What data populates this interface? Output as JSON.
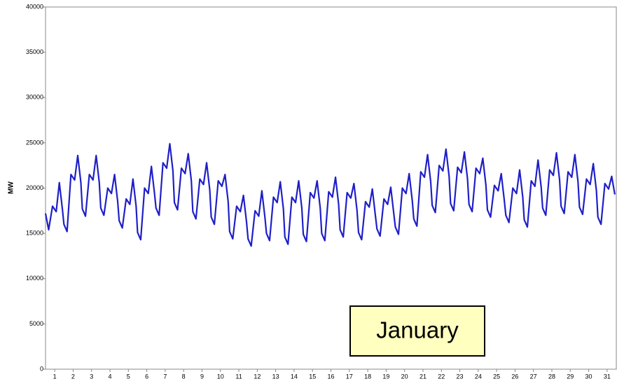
{
  "chart_data": {
    "type": "line",
    "y_label": "MW",
    "annotation": "January",
    "color": "#1f1fc8",
    "xlim": [
      1,
      32
    ],
    "ylim": [
      0,
      40000
    ],
    "yticks": [
      0,
      5000,
      10000,
      15000,
      20000,
      25000,
      30000,
      35000,
      40000
    ],
    "xticks": [
      {
        "value": 1.5,
        "label": "1"
      },
      {
        "value": 2.5,
        "label": "2"
      },
      {
        "value": 3.5,
        "label": "3"
      },
      {
        "value": 4.5,
        "label": "4"
      },
      {
        "value": 5.5,
        "label": "5"
      },
      {
        "value": 6.5,
        "label": "6"
      },
      {
        "value": 7.5,
        "label": "7"
      },
      {
        "value": 8.5,
        "label": "8"
      },
      {
        "value": 9.5,
        "label": "9"
      },
      {
        "value": 10.5,
        "label": "10"
      },
      {
        "value": 11.5,
        "label": "11"
      },
      {
        "value": 12.5,
        "label": "12"
      },
      {
        "value": 13.5,
        "label": "13"
      },
      {
        "value": 14.5,
        "label": "14"
      },
      {
        "value": 15.5,
        "label": "15"
      },
      {
        "value": 16.5,
        "label": "16"
      },
      {
        "value": 17.5,
        "label": "17"
      },
      {
        "value": 18.5,
        "label": "18"
      },
      {
        "value": 19.5,
        "label": "19"
      },
      {
        "value": 20.5,
        "label": "20"
      },
      {
        "value": 21.5,
        "label": "21"
      },
      {
        "value": 22.5,
        "label": "22"
      },
      {
        "value": 23.5,
        "label": "23"
      },
      {
        "value": 24.5,
        "label": "24"
      },
      {
        "value": 25.5,
        "label": "25"
      },
      {
        "value": 26.5,
        "label": "26"
      },
      {
        "value": 27.5,
        "label": "27"
      },
      {
        "value": 28.5,
        "label": "28"
      },
      {
        "value": 29.5,
        "label": "29"
      },
      {
        "value": 30.5,
        "label": "30"
      },
      {
        "value": 31.5,
        "label": "31"
      }
    ],
    "x": [
      1,
      1.17,
      1.38,
      1.58,
      1.75,
      1.92,
      2,
      2.17,
      2.38,
      2.58,
      2.75,
      2.92,
      3,
      3.17,
      3.38,
      3.58,
      3.75,
      3.92,
      4,
      4.17,
      4.38,
      4.58,
      4.75,
      4.92,
      5,
      5.17,
      5.38,
      5.58,
      5.75,
      5.92,
      6,
      6.17,
      6.38,
      6.58,
      6.75,
      6.92,
      7,
      7.17,
      7.38,
      7.58,
      7.75,
      7.92,
      8,
      8.17,
      8.38,
      8.58,
      8.75,
      8.92,
      9,
      9.17,
      9.38,
      9.58,
      9.75,
      9.92,
      10,
      10.17,
      10.38,
      10.58,
      10.75,
      10.92,
      11,
      11.17,
      11.38,
      11.58,
      11.75,
      11.92,
      12,
      12.17,
      12.38,
      12.58,
      12.75,
      12.92,
      13,
      13.17,
      13.38,
      13.58,
      13.75,
      13.92,
      14,
      14.17,
      14.38,
      14.58,
      14.75,
      14.92,
      15,
      15.17,
      15.38,
      15.58,
      15.75,
      15.92,
      16,
      16.17,
      16.38,
      16.58,
      16.75,
      16.92,
      17,
      17.17,
      17.38,
      17.58,
      17.75,
      17.92,
      18,
      18.17,
      18.38,
      18.58,
      18.75,
      18.92,
      19,
      19.17,
      19.38,
      19.58,
      19.75,
      19.92,
      20,
      20.17,
      20.38,
      20.58,
      20.75,
      20.92,
      21,
      21.17,
      21.38,
      21.58,
      21.75,
      21.92,
      22,
      22.17,
      22.38,
      22.58,
      22.75,
      22.92,
      23,
      23.17,
      23.38,
      23.58,
      23.75,
      23.92,
      24,
      24.17,
      24.38,
      24.58,
      24.75,
      24.92,
      25,
      25.17,
      25.38,
      25.58,
      25.75,
      25.92,
      26,
      26.17,
      26.38,
      26.58,
      26.75,
      26.92,
      27,
      27.17,
      27.38,
      27.58,
      27.75,
      27.92,
      28,
      28.17,
      28.38,
      28.58,
      28.75,
      28.92,
      29,
      29.17,
      29.38,
      29.58,
      29.75,
      29.92,
      30,
      30.17,
      30.38,
      30.58,
      30.75,
      30.92,
      31,
      31.17,
      31.38,
      31.58,
      31.75,
      31.92
    ],
    "values": [
      17200,
      15400,
      18000,
      17400,
      20600,
      17600,
      16000,
      15200,
      21500,
      20900,
      23600,
      20600,
      17700,
      16900,
      21500,
      20900,
      23600,
      20600,
      17800,
      17000,
      20000,
      19400,
      21500,
      18500,
      16400,
      15600,
      18800,
      18200,
      21000,
      18000,
      15100,
      14300,
      20000,
      19400,
      22400,
      19400,
      17800,
      17000,
      22800,
      22200,
      24900,
      21900,
      18400,
      17600,
      22200,
      21600,
      23800,
      20800,
      17400,
      16600,
      21000,
      20400,
      22800,
      19800,
      16800,
      16000,
      20800,
      20200,
      21500,
      18500,
      15200,
      14400,
      18000,
      17400,
      19200,
      16200,
      14400,
      13600,
      17500,
      16900,
      19700,
      16700,
      15000,
      14200,
      19000,
      18400,
      20700,
      17700,
      14600,
      13800,
      19000,
      18400,
      20800,
      17800,
      14900,
      14100,
      19500,
      18900,
      20800,
      17800,
      15000,
      14200,
      19600,
      19000,
      21200,
      18200,
      15400,
      14600,
      19500,
      18900,
      20500,
      17500,
      15100,
      14300,
      18500,
      17900,
      19900,
      16900,
      15500,
      14700,
      18800,
      18200,
      20100,
      17100,
      15700,
      14900,
      20000,
      19400,
      21600,
      18600,
      16600,
      15800,
      21800,
      21200,
      23700,
      20700,
      18100,
      17300,
      22500,
      21900,
      24300,
      21300,
      18300,
      17500,
      22300,
      21700,
      24000,
      21000,
      18200,
      17400,
      22200,
      21600,
      23300,
      20300,
      17600,
      16800,
      20300,
      19700,
      21600,
      18600,
      17000,
      16200,
      20000,
      19400,
      22000,
      19000,
      16500,
      15700,
      20800,
      20200,
      23100,
      20100,
      17800,
      17000,
      22000,
      21400,
      23900,
      20900,
      18000,
      17200,
      21800,
      21200,
      23700,
      20700,
      17900,
      17100,
      21000,
      20400,
      22700,
      19700,
      16800,
      16000,
      20500,
      19900,
      21300,
      19300
    ]
  }
}
